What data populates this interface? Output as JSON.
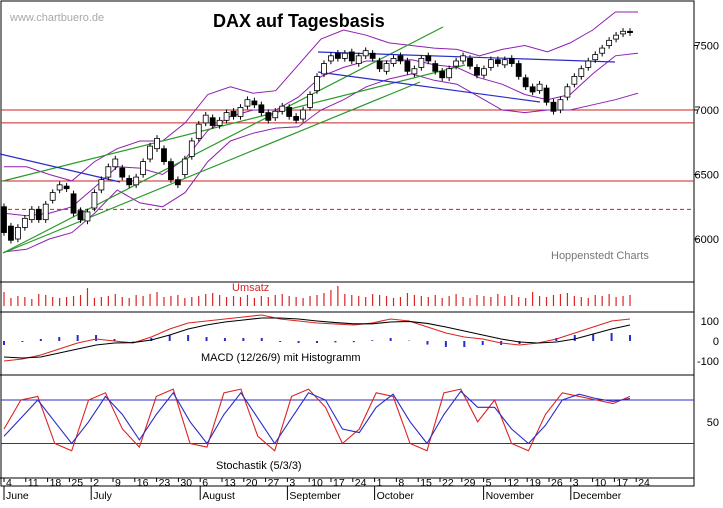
{
  "watermark": "www.chartbuero.de",
  "title": "DAX auf Tagesbasis",
  "source": "Hoppenstedt Charts",
  "volume_label": "Umsatz",
  "macd_label": "MACD (12/26/9) mit Histogramm",
  "stoch_label": "Stochastik (5/3/3)",
  "colors": {
    "candle": "#000000",
    "bollinger": "#8e1fb0",
    "trend_up": "#2a9a2a",
    "trend_line_blue": "#2b2bc8",
    "support": "#cc2222",
    "volume": "#dd2222",
    "macd_fast": "#dd2222",
    "macd_signal": "#000000",
    "histogram": "#2b2bc8",
    "stoch_k": "#dd2222",
    "stoch_d": "#2b2bc8"
  },
  "chart_data": [
    {
      "type": "candlestick",
      "panel": "price",
      "title": "DAX auf Tagesbasis",
      "ylim": [
        5900,
        7800
      ],
      "yticks": [
        6000,
        6500,
        7000,
        7500
      ],
      "grid": false,
      "x_day_ticks": [
        "4",
        "11",
        "18",
        "25",
        "2",
        "9",
        "16",
        "23",
        "30",
        "6",
        "13",
        "20",
        "27",
        "3",
        "10",
        "17",
        "24",
        "1",
        "8",
        "15",
        "22",
        "29",
        "5",
        "12",
        "19",
        "26",
        "3",
        "10",
        "17",
        "24"
      ],
      "x_month_labels": [
        "June",
        "July",
        "August",
        "September",
        "October",
        "November",
        "December"
      ],
      "horizontal_levels": [
        {
          "value": 7000,
          "style": "solid"
        },
        {
          "value": 6900,
          "style": "solid"
        },
        {
          "value": 6450,
          "style": "solid"
        },
        {
          "value": 6230,
          "style": "dashed"
        }
      ],
      "series": [
        {
          "name": "Bollinger upper",
          "values": [
            6560,
            6560,
            6500,
            6450,
            6600,
            6700,
            6760,
            6760,
            6900,
            7120,
            7180,
            7130,
            7150,
            7350,
            7550,
            7620,
            7580,
            7520,
            7500,
            7480,
            7470,
            7420,
            7470,
            7500,
            7450,
            7520,
            7620,
            7760,
            7760
          ]
        },
        {
          "name": "Bollinger middle",
          "values": [
            6200,
            6180,
            6200,
            6250,
            6400,
            6560,
            6550,
            6500,
            6620,
            6840,
            6950,
            7000,
            7000,
            7100,
            7260,
            7330,
            7380,
            7380,
            7390,
            7350,
            7330,
            7250,
            7200,
            7120,
            7080,
            7120,
            7280,
            7420,
            7440
          ]
        },
        {
          "name": "Bollinger lower",
          "values": [
            5900,
            5920,
            6000,
            6050,
            6200,
            6380,
            6280,
            6250,
            6360,
            6600,
            6760,
            6820,
            6860,
            6870,
            7000,
            7080,
            7180,
            7240,
            7280,
            7230,
            7200,
            7100,
            7000,
            6980,
            7000,
            7000,
            7040,
            7080,
            7130
          ]
        }
      ],
      "candles": [
        {
          "x": 1,
          "o": 6250,
          "c": 6050
        },
        {
          "x": 2,
          "o": 6100,
          "c": 5990
        },
        {
          "x": 3,
          "o": 6000,
          "c": 6090
        },
        {
          "x": 4,
          "o": 6090,
          "c": 6160
        },
        {
          "x": 5,
          "o": 6150,
          "c": 6230
        },
        {
          "x": 6,
          "o": 6230,
          "c": 6150
        },
        {
          "x": 7,
          "o": 6150,
          "c": 6270
        },
        {
          "x": 8,
          "o": 6300,
          "c": 6360
        },
        {
          "x": 9,
          "o": 6380,
          "c": 6420
        },
        {
          "x": 10,
          "o": 6410,
          "c": 6390
        },
        {
          "x": 11,
          "o": 6350,
          "c": 6200
        },
        {
          "x": 12,
          "o": 6220,
          "c": 6150
        },
        {
          "x": 13,
          "o": 6140,
          "c": 6210
        },
        {
          "x": 14,
          "o": 6240,
          "c": 6360
        },
        {
          "x": 15,
          "o": 6380,
          "c": 6460
        },
        {
          "x": 16,
          "o": 6480,
          "c": 6560
        },
        {
          "x": 17,
          "o": 6560,
          "c": 6620
        },
        {
          "x": 18,
          "o": 6550,
          "c": 6480
        },
        {
          "x": 19,
          "o": 6470,
          "c": 6420
        },
        {
          "x": 20,
          "o": 6420,
          "c": 6480
        },
        {
          "x": 21,
          "o": 6500,
          "c": 6600
        },
        {
          "x": 22,
          "o": 6620,
          "c": 6720
        },
        {
          "x": 23,
          "o": 6700,
          "c": 6780
        },
        {
          "x": 24,
          "o": 6700,
          "c": 6600
        },
        {
          "x": 25,
          "o": 6600,
          "c": 6460
        },
        {
          "x": 26,
          "o": 6460,
          "c": 6420
        },
        {
          "x": 27,
          "o": 6500,
          "c": 6620
        },
        {
          "x": 28,
          "o": 6640,
          "c": 6760
        },
        {
          "x": 29,
          "o": 6780,
          "c": 6890
        },
        {
          "x": 30,
          "o": 6900,
          "c": 6960
        },
        {
          "x": 31,
          "o": 6940,
          "c": 6880
        },
        {
          "x": 32,
          "o": 6880,
          "c": 6920
        },
        {
          "x": 33,
          "o": 6920,
          "c": 6980
        },
        {
          "x": 34,
          "o": 6990,
          "c": 6950
        },
        {
          "x": 35,
          "o": 6950,
          "c": 7020
        },
        {
          "x": 36,
          "o": 7030,
          "c": 7080
        },
        {
          "x": 37,
          "o": 7070,
          "c": 7040
        },
        {
          "x": 38,
          "o": 7040,
          "c": 6980
        },
        {
          "x": 39,
          "o": 6980,
          "c": 6920
        },
        {
          "x": 40,
          "o": 6940,
          "c": 6990
        },
        {
          "x": 41,
          "o": 6990,
          "c": 7030
        },
        {
          "x": 42,
          "o": 7020,
          "c": 6950
        },
        {
          "x": 43,
          "o": 6950,
          "c": 6920
        },
        {
          "x": 44,
          "o": 6930,
          "c": 7000
        },
        {
          "x": 45,
          "o": 7020,
          "c": 7120
        },
        {
          "x": 46,
          "o": 7150,
          "c": 7260
        },
        {
          "x": 47,
          "o": 7280,
          "c": 7360
        },
        {
          "x": 48,
          "o": 7380,
          "c": 7420
        },
        {
          "x": 49,
          "o": 7440,
          "c": 7400
        },
        {
          "x": 50,
          "o": 7400,
          "c": 7440
        },
        {
          "x": 51,
          "o": 7450,
          "c": 7380
        },
        {
          "x": 52,
          "o": 7360,
          "c": 7420
        },
        {
          "x": 53,
          "o": 7420,
          "c": 7460
        },
        {
          "x": 54,
          "o": 7440,
          "c": 7400
        },
        {
          "x": 55,
          "o": 7380,
          "c": 7320
        },
        {
          "x": 56,
          "o": 7300,
          "c": 7360
        },
        {
          "x": 57,
          "o": 7360,
          "c": 7400
        },
        {
          "x": 58,
          "o": 7420,
          "c": 7380
        },
        {
          "x": 59,
          "o": 7380,
          "c": 7300
        },
        {
          "x": 60,
          "o": 7280,
          "c": 7320
        },
        {
          "x": 61,
          "o": 7330,
          "c": 7400
        },
        {
          "x": 62,
          "o": 7420,
          "c": 7380
        },
        {
          "x": 63,
          "o": 7360,
          "c": 7300
        },
        {
          "x": 64,
          "o": 7300,
          "c": 7250
        },
        {
          "x": 65,
          "o": 7250,
          "c": 7320
        },
        {
          "x": 66,
          "o": 7340,
          "c": 7380
        },
        {
          "x": 67,
          "o": 7380,
          "c": 7420
        },
        {
          "x": 68,
          "o": 7400,
          "c": 7340
        },
        {
          "x": 69,
          "o": 7330,
          "c": 7270
        },
        {
          "x": 70,
          "o": 7270,
          "c": 7320
        },
        {
          "x": 71,
          "o": 7330,
          "c": 7390
        },
        {
          "x": 72,
          "o": 7390,
          "c": 7360
        },
        {
          "x": 73,
          "o": 7350,
          "c": 7390
        },
        {
          "x": 74,
          "o": 7400,
          "c": 7360
        },
        {
          "x": 75,
          "o": 7360,
          "c": 7260
        },
        {
          "x": 76,
          "o": 7250,
          "c": 7180
        },
        {
          "x": 77,
          "o": 7180,
          "c": 7140
        },
        {
          "x": 78,
          "o": 7150,
          "c": 7200
        },
        {
          "x": 79,
          "o": 7170,
          "c": 7060
        },
        {
          "x": 80,
          "o": 7060,
          "c": 6990
        },
        {
          "x": 81,
          "o": 7000,
          "c": 7080
        },
        {
          "x": 82,
          "o": 7100,
          "c": 7180
        },
        {
          "x": 83,
          "o": 7200,
          "c": 7260
        },
        {
          "x": 84,
          "o": 7260,
          "c": 7320
        },
        {
          "x": 85,
          "o": 7330,
          "c": 7380
        },
        {
          "x": 86,
          "o": 7390,
          "c": 7430
        },
        {
          "x": 87,
          "o": 7440,
          "c": 7480
        },
        {
          "x": 88,
          "o": 7500,
          "c": 7540
        },
        {
          "x": 89,
          "o": 7550,
          "c": 7580
        },
        {
          "x": 90,
          "o": 7590,
          "c": 7610
        },
        {
          "x": 91,
          "o": 7610,
          "c": 7600
        }
      ]
    },
    {
      "type": "bar",
      "panel": "volume",
      "title": "Umsatz",
      "values": [
        14,
        8,
        10,
        9,
        7,
        12,
        11,
        9,
        8,
        9,
        10,
        11,
        18,
        8,
        9,
        10,
        12,
        9,
        8,
        11,
        10,
        12,
        14,
        9,
        10,
        11,
        8,
        9,
        10,
        12,
        13,
        11,
        9,
        10,
        9,
        11,
        8,
        10,
        9,
        11,
        12,
        10,
        9,
        8,
        10,
        11,
        13,
        16,
        20,
        12,
        11,
        10,
        9,
        12,
        11,
        10,
        8,
        9,
        13,
        11,
        10,
        9,
        11,
        8,
        10,
        12,
        9,
        8,
        11,
        10,
        9,
        12,
        10,
        11,
        9,
        8,
        14,
        10,
        9,
        11,
        12,
        13,
        10,
        9,
        8,
        11,
        10,
        12,
        9,
        10,
        11
      ]
    },
    {
      "type": "line",
      "panel": "macd",
      "title": "MACD (12/26/9) mit Histogramm",
      "yticks": [
        100,
        0,
        -100
      ],
      "series": [
        {
          "name": "MACD",
          "values": [
            -100,
            -90,
            -70,
            -40,
            -10,
            10,
            0,
            -10,
            20,
            60,
            90,
            100,
            110,
            120,
            130,
            110,
            100,
            90,
            85,
            80,
            90,
            110,
            100,
            70,
            40,
            20,
            10,
            -10,
            -20,
            -10,
            10,
            40,
            70,
            100,
            110
          ]
        },
        {
          "name": "Signal",
          "values": [
            -80,
            -85,
            -80,
            -60,
            -40,
            -20,
            -10,
            -8,
            5,
            30,
            60,
            80,
            95,
            105,
            115,
            115,
            110,
            100,
            92,
            86,
            86,
            95,
            98,
            88,
            70,
            50,
            30,
            10,
            -5,
            -10,
            -5,
            10,
            35,
            60,
            80
          ]
        }
      ],
      "histogram": [
        -20,
        -5,
        10,
        20,
        30,
        30,
        10,
        -2,
        15,
        30,
        30,
        20,
        15,
        15,
        15,
        -5,
        -10,
        -10,
        -7,
        -6,
        4,
        15,
        2,
        -18,
        -30,
        -30,
        -20,
        -20,
        -15,
        0,
        15,
        30,
        35,
        40,
        30
      ]
    },
    {
      "type": "line",
      "panel": "stochastic",
      "title": "Stochastik (5/3/3)",
      "yticks": [
        50
      ],
      "levels": [
        80,
        20
      ],
      "series": [
        {
          "name": "%K",
          "values": [
            40,
            80,
            85,
            20,
            10,
            80,
            90,
            40,
            15,
            85,
            95,
            20,
            15,
            90,
            95,
            30,
            10,
            85,
            95,
            70,
            20,
            40,
            90,
            85,
            20,
            10,
            90,
            95,
            50,
            80,
            20,
            10,
            60,
            90,
            85,
            80,
            75,
            85
          ]
        },
        {
          "name": "%D",
          "values": [
            30,
            55,
            80,
            50,
            20,
            50,
            85,
            60,
            25,
            60,
            90,
            50,
            20,
            60,
            90,
            55,
            20,
            55,
            90,
            80,
            40,
            35,
            70,
            88,
            50,
            20,
            60,
            92,
            70,
            70,
            40,
            20,
            45,
            80,
            88,
            82,
            78,
            82
          ]
        }
      ]
    }
  ]
}
